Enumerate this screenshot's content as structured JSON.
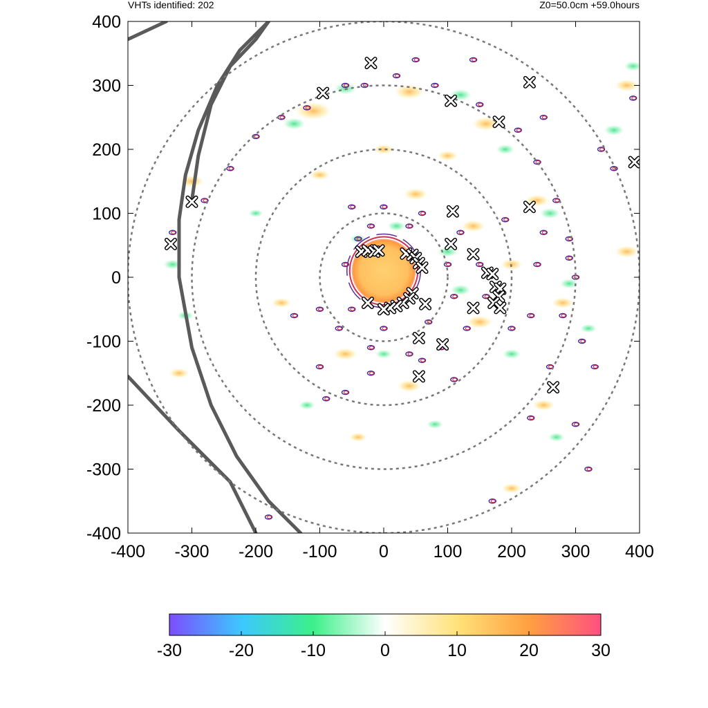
{
  "header": {
    "left_text": "VHTs identified: 202",
    "right_text": "Z0=50.0cm  +59.0hours"
  },
  "chart_data": {
    "type": "heatmap",
    "title": "",
    "xlabel": "",
    "ylabel": "",
    "xlim": [
      -400,
      400
    ],
    "ylim": [
      -400,
      400
    ],
    "x_ticks": [
      -400,
      -300,
      -200,
      -100,
      0,
      100,
      200,
      300,
      400
    ],
    "y_ticks": [
      -400,
      -300,
      -200,
      -100,
      0,
      100,
      200,
      300,
      400
    ],
    "grid": false,
    "range_rings": {
      "center": [
        0,
        0
      ],
      "radii": [
        100,
        200,
        300,
        400
      ],
      "style": "dashed",
      "color": "#777777"
    },
    "colorbar": {
      "min": -30,
      "max": 30,
      "ticks": [
        -30,
        -20,
        -10,
        0,
        10,
        20,
        30
      ],
      "colors": [
        "#7b4dff",
        "#3cc8ff",
        "#3cf08a",
        "#ffffff",
        "#ffe27a",
        "#ffa040",
        "#ff5080"
      ],
      "orientation": "horizontal"
    },
    "eye_core": {
      "center": [
        0,
        10
      ],
      "radius": 50,
      "value": 18
    },
    "coastlines": [
      [
        [
          -400,
          372
        ],
        [
          -340,
          400
        ]
      ],
      [
        [
          -300,
          120
        ],
        [
          -290,
          190
        ],
        [
          -270,
          270
        ],
        [
          -240,
          330
        ],
        [
          -200,
          372
        ],
        [
          -180,
          400
        ]
      ],
      [
        [
          -320,
          0
        ],
        [
          -320,
          90
        ],
        [
          -310,
          160
        ],
        [
          -290,
          230
        ],
        [
          -260,
          300
        ],
        [
          -225,
          355
        ],
        [
          -180,
          400
        ]
      ],
      [
        [
          -400,
          -155
        ],
        [
          -320,
          -240
        ],
        [
          -240,
          -320
        ],
        [
          -200,
          -400
        ]
      ],
      [
        [
          -320,
          0
        ],
        [
          -300,
          -110
        ],
        [
          -270,
          -200
        ],
        [
          -230,
          -280
        ],
        [
          -180,
          -350
        ],
        [
          -130,
          -400
        ]
      ]
    ],
    "vht_markers": [
      [
        -20,
        335
      ],
      [
        -95,
        288
      ],
      [
        105,
        276
      ],
      [
        180,
        243
      ],
      [
        228,
        305
      ],
      [
        392,
        180
      ],
      [
        228,
        110
      ],
      [
        -300,
        118
      ],
      [
        -333,
        52
      ],
      [
        108,
        103
      ],
      [
        105,
        52
      ],
      [
        140,
        36
      ],
      [
        -35,
        40
      ],
      [
        -25,
        42
      ],
      [
        -15,
        40
      ],
      [
        -8,
        42
      ],
      [
        35,
        37
      ],
      [
        45,
        35
      ],
      [
        50,
        30
      ],
      [
        55,
        22
      ],
      [
        60,
        15
      ],
      [
        162,
        7
      ],
      [
        170,
        5
      ],
      [
        175,
        -15
      ],
      [
        182,
        -18
      ],
      [
        180,
        -30
      ],
      [
        172,
        -40
      ],
      [
        182,
        -48
      ],
      [
        140,
        -48
      ],
      [
        65,
        -42
      ],
      [
        45,
        -25
      ],
      [
        40,
        -33
      ],
      [
        30,
        -40
      ],
      [
        20,
        -45
      ],
      [
        10,
        -48
      ],
      [
        0,
        -50
      ],
      [
        -25,
        -40
      ],
      [
        55,
        -95
      ],
      [
        92,
        -105
      ],
      [
        55,
        -155
      ],
      [
        265,
        -172
      ]
    ],
    "vht_contours": [
      [
        -120,
        265
      ],
      [
        -60,
        300
      ],
      [
        20,
        315
      ],
      [
        80,
        300
      ],
      [
        150,
        270
      ],
      [
        210,
        230
      ],
      [
        240,
        180
      ],
      [
        270,
        120
      ],
      [
        290,
        60
      ],
      [
        300,
        0
      ],
      [
        280,
        -60
      ],
      [
        260,
        -140
      ],
      [
        230,
        -220
      ],
      [
        300,
        -230
      ],
      [
        320,
        -300
      ],
      [
        -200,
        220
      ],
      [
        -240,
        170
      ],
      [
        -280,
        120
      ],
      [
        -330,
        70
      ],
      [
        -160,
        250
      ],
      [
        -50,
        110
      ],
      [
        0,
        110
      ],
      [
        60,
        100
      ],
      [
        120,
        70
      ],
      [
        150,
        20
      ],
      [
        160,
        -30
      ],
      [
        130,
        -80
      ],
      [
        90,
        -110
      ],
      [
        40,
        -120
      ],
      [
        -20,
        -110
      ],
      [
        -70,
        -80
      ],
      [
        -100,
        -50
      ],
      [
        -140,
        -60
      ],
      [
        -100,
        -140
      ],
      [
        -20,
        -150
      ],
      [
        60,
        -130
      ],
      [
        110,
        -160
      ],
      [
        -60,
        -180
      ],
      [
        -90,
        -190
      ],
      [
        200,
        -80
      ],
      [
        230,
        -60
      ],
      [
        240,
        20
      ],
      [
        190,
        90
      ],
      [
        250,
        70
      ],
      [
        290,
        30
      ],
      [
        310,
        -100
      ],
      [
        330,
        -140
      ],
      [
        140,
        340
      ],
      [
        340,
        200
      ],
      [
        360,
        170
      ],
      [
        390,
        280
      ],
      [
        170,
        -350
      ],
      [
        -180,
        -375
      ],
      [
        250,
        250
      ],
      [
        50,
        340
      ],
      [
        -30,
        300
      ],
      [
        -20,
        80
      ],
      [
        40,
        80
      ],
      [
        100,
        20
      ],
      [
        110,
        -30
      ],
      [
        70,
        -70
      ],
      [
        -50,
        -50
      ],
      [
        -60,
        20
      ],
      [
        -40,
        60
      ],
      [
        0,
        -80
      ]
    ],
    "warm_patches": [
      [
        -110,
        260,
        18
      ],
      [
        40,
        290,
        15
      ],
      [
        160,
        240,
        14
      ],
      [
        240,
        120,
        12
      ],
      [
        280,
        -40,
        11
      ],
      [
        -300,
        150,
        12
      ],
      [
        50,
        130,
        12
      ],
      [
        140,
        80,
        12
      ],
      [
        150,
        -70,
        13
      ],
      [
        -60,
        -120,
        12
      ],
      [
        40,
        -170,
        12
      ],
      [
        250,
        -200,
        11
      ],
      [
        -320,
        -150,
        10
      ],
      [
        380,
        300,
        12
      ],
      [
        200,
        -330,
        10
      ],
      [
        -100,
        160,
        10
      ],
      [
        0,
        200,
        10
      ],
      [
        100,
        190,
        10
      ],
      [
        -160,
        -40,
        10
      ],
      [
        200,
        20,
        11
      ],
      [
        380,
        40,
        12
      ],
      [
        -40,
        -250,
        9
      ]
    ],
    "cool_patches": [
      [
        -60,
        295,
        12
      ],
      [
        -140,
        240,
        12
      ],
      [
        120,
        285,
        12
      ],
      [
        190,
        200,
        10
      ],
      [
        260,
        100,
        11
      ],
      [
        290,
        -10,
        10
      ],
      [
        -330,
        20,
        10
      ],
      [
        -310,
        -60,
        9
      ],
      [
        100,
        40,
        11
      ],
      [
        120,
        -20,
        11
      ],
      [
        20,
        80,
        10
      ],
      [
        -40,
        60,
        9
      ],
      [
        0,
        -120,
        9
      ],
      [
        200,
        -120,
        10
      ],
      [
        -120,
        -200,
        9
      ],
      [
        360,
        230,
        11
      ],
      [
        390,
        330,
        10
      ],
      [
        270,
        -250,
        9
      ],
      [
        320,
        -80,
        9
      ],
      [
        -200,
        100,
        8
      ],
      [
        80,
        -230,
        9
      ]
    ]
  }
}
